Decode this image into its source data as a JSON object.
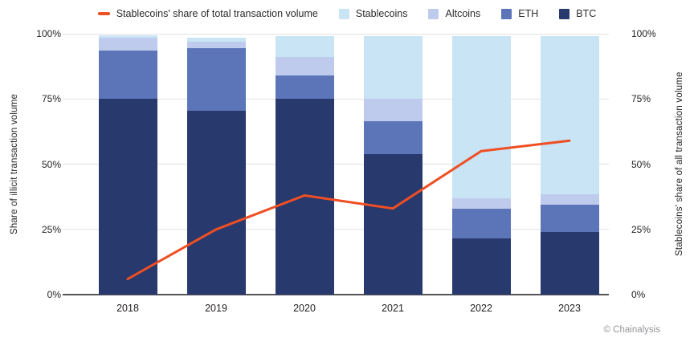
{
  "colors": {
    "stablecoins": "#c8e4f5",
    "altcoins": "#bfcbec",
    "eth": "#5c75b9",
    "btc": "#28396e",
    "line": "#f04e23",
    "grid": "#e3e3e3",
    "axis": "#55565a",
    "text": "#231f20",
    "watermark": "#939598"
  },
  "legend": {
    "line_item": {
      "label": "Stablecoins' share of total transaction volume",
      "color_key": "line"
    },
    "items": [
      {
        "label": "Stablecoins",
        "color_key": "stablecoins"
      },
      {
        "label": "Altcoins",
        "color_key": "altcoins"
      },
      {
        "label": "ETH",
        "color_key": "eth"
      },
      {
        "label": "BTC",
        "color_key": "btc"
      }
    ]
  },
  "chart_data": {
    "type": "stacked-bar+line",
    "categories": [
      "2018",
      "2019",
      "2020",
      "2021",
      "2022",
      "2023"
    ],
    "stack_order_bottom_to_top": [
      "BTC",
      "ETH",
      "Altcoins",
      "Stablecoins"
    ],
    "series": [
      {
        "name": "BTC",
        "type": "bar",
        "color_key": "btc",
        "values": [
          75,
          70.5,
          75,
          54,
          21.5,
          24
        ]
      },
      {
        "name": "ETH",
        "type": "bar",
        "color_key": "eth",
        "values": [
          18.5,
          24,
          9,
          12.5,
          11.5,
          10.5
        ]
      },
      {
        "name": "Altcoins",
        "type": "bar",
        "color_key": "altcoins",
        "values": [
          5,
          2.5,
          7,
          8.5,
          4,
          4
        ]
      },
      {
        "name": "Stablecoins",
        "type": "bar",
        "color_key": "stablecoins",
        "values": [
          1,
          1.5,
          8,
          24,
          62,
          60.5
        ]
      },
      {
        "name": "Stablecoins' share of total transaction volume",
        "type": "line",
        "color_key": "line",
        "values": [
          6,
          25,
          38,
          33,
          55,
          59
        ]
      }
    ],
    "left_axis": {
      "title": "Share of illicit transaction volume",
      "range": [
        0,
        100
      ],
      "ticks": [
        {
          "v": 0,
          "label": "0%"
        },
        {
          "v": 25,
          "label": "25%"
        },
        {
          "v": 50,
          "label": "50%"
        },
        {
          "v": 75,
          "label": "75%"
        },
        {
          "v": 100,
          "label": "100%"
        }
      ]
    },
    "right_axis": {
      "title": "Stablecoins' share of all transaction volume",
      "range": [
        0,
        100
      ],
      "ticks": [
        {
          "v": 0,
          "label": "0%"
        },
        {
          "v": 25,
          "label": "25%"
        },
        {
          "v": 50,
          "label": "50%"
        },
        {
          "v": 75,
          "label": "75%"
        },
        {
          "v": 100,
          "label": "100%"
        }
      ],
      "grid": true,
      "legend_position": "top-center"
    }
  },
  "attribution": "© Chainalysis"
}
